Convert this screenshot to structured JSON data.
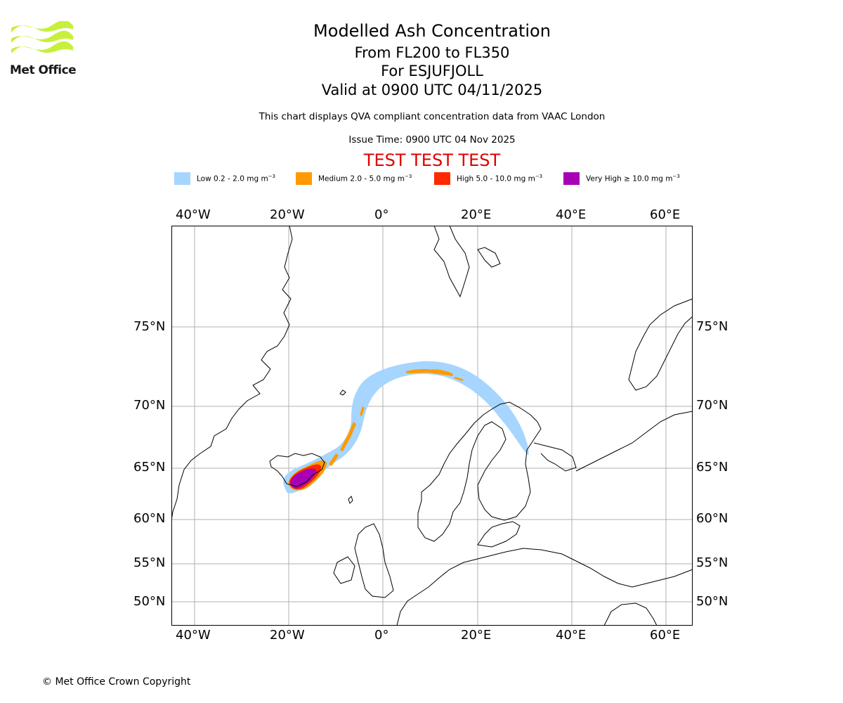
{
  "header": {
    "title": "Modelled Ash Concentration",
    "levels": "From FL200 to FL350",
    "volcano": "For ESJUFJOLL",
    "valid": "Valid at 0900 UTC 04/11/2025",
    "description": "This chart displays QVA compliant concentration data from VAAC London",
    "issue_time": "Issue Time: 0900 UTC 04 Nov 2025",
    "test_banner": "TEST TEST TEST"
  },
  "logo": {
    "text": "Met Office"
  },
  "legend": [
    {
      "label": "Low 0.2 - 2.0 mg m",
      "exp": "−3",
      "color": "#a6d5ff"
    },
    {
      "label": "Medium 2.0 - 5.0 mg m",
      "exp": "−3",
      "color": "#ff9a00"
    },
    {
      "label": "High 5.0 - 10.0 mg m",
      "exp": "−3",
      "color": "#ff2800"
    },
    {
      "label": "Very High  ≥  10.0 mg m",
      "exp": "−3",
      "color": "#a800b4"
    }
  ],
  "axes": {
    "lon_labels": [
      "40°W",
      "20°W",
      "0°",
      "20°E",
      "40°E",
      "60°E"
    ],
    "lat_labels": [
      "75°N",
      "70°N",
      "65°N",
      "60°N",
      "55°N",
      "50°N"
    ]
  },
  "colors": {
    "grid": "#b0b0b0",
    "coast": "#000000",
    "test_banner": "#e00000",
    "logo_green": "#c6f03c"
  },
  "footer": {
    "copyright": "© Met Office Crown Copyright"
  }
}
